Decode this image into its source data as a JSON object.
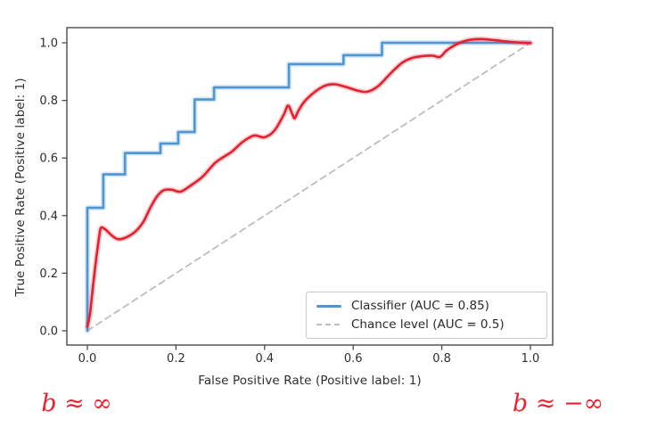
{
  "chart_data": {
    "type": "line",
    "title": "",
    "xlabel": "False Positive Rate (Positive label: 1)",
    "ylabel": "True Positive Rate (Positive label: 1)",
    "xlim": [
      -0.05,
      1.05
    ],
    "ylim": [
      -0.05,
      1.05
    ],
    "grid": false,
    "legend_position": "lower right",
    "x_ticks": [
      0.0,
      0.2,
      0.4,
      0.6,
      0.8,
      1.0
    ],
    "y_ticks": [
      0.0,
      0.2,
      0.4,
      0.6,
      0.8,
      1.0
    ],
    "x_tick_labels": [
      "0.0",
      "0.2",
      "0.4",
      "0.6",
      "0.8",
      "1.0"
    ],
    "y_tick_labels": [
      "0.0",
      "0.2",
      "0.4",
      "0.6",
      "0.8",
      "1.0"
    ],
    "axis_color": "#4a4a4a",
    "tick_label_color": "#2e2e2e",
    "series": [
      {
        "name": "Classifier (AUC = 0.85)",
        "data_name": "classifier-curve",
        "type": "step",
        "style": "solid",
        "color": "#4d96d2",
        "width": 2.6,
        "halo": true,
        "z": 2,
        "points": [
          [
            0,
            0
          ],
          [
            0,
            0.427
          ],
          [
            0.036,
            0.427
          ],
          [
            0.036,
            0.543
          ],
          [
            0.085,
            0.543
          ],
          [
            0.085,
            0.617
          ],
          [
            0.165,
            0.617
          ],
          [
            0.165,
            0.65
          ],
          [
            0.205,
            0.65
          ],
          [
            0.205,
            0.69
          ],
          [
            0.242,
            0.69
          ],
          [
            0.242,
            0.803
          ],
          [
            0.286,
            0.803
          ],
          [
            0.286,
            0.845
          ],
          [
            0.455,
            0.845
          ],
          [
            0.455,
            0.926
          ],
          [
            0.578,
            0.926
          ],
          [
            0.578,
            0.957
          ],
          [
            0.665,
            0.957
          ],
          [
            0.665,
            1.0
          ],
          [
            1.0,
            1.0
          ]
        ]
      },
      {
        "name": "Chance level (AUC = 0.5)",
        "data_name": "chance-line",
        "type": "line",
        "style": "dashed",
        "color": "#bdbdbd",
        "width": 1.8,
        "halo": false,
        "z": 1,
        "points": [
          [
            0,
            0
          ],
          [
            1,
            1
          ]
        ]
      },
      {
        "name": "Smoothed ROC annotation curve",
        "data_name": "smoothed-roc-curve",
        "type": "smooth",
        "style": "solid",
        "color": "#e6202e",
        "width": 2.6,
        "halo": true,
        "z": 3,
        "in_legend": false,
        "points": [
          [
            0,
            0.015
          ],
          [
            0.006,
            0.06
          ],
          [
            0.013,
            0.16
          ],
          [
            0.02,
            0.25
          ],
          [
            0.027,
            0.33
          ],
          [
            0.031,
            0.358
          ],
          [
            0.042,
            0.35
          ],
          [
            0.056,
            0.33
          ],
          [
            0.07,
            0.318
          ],
          [
            0.09,
            0.326
          ],
          [
            0.11,
            0.347
          ],
          [
            0.127,
            0.38
          ],
          [
            0.143,
            0.43
          ],
          [
            0.158,
            0.468
          ],
          [
            0.172,
            0.488
          ],
          [
            0.19,
            0.49
          ],
          [
            0.21,
            0.483
          ],
          [
            0.232,
            0.503
          ],
          [
            0.26,
            0.535
          ],
          [
            0.29,
            0.585
          ],
          [
            0.326,
            0.622
          ],
          [
            0.35,
            0.655
          ],
          [
            0.376,
            0.678
          ],
          [
            0.4,
            0.672
          ],
          [
            0.423,
            0.697
          ],
          [
            0.443,
            0.75
          ],
          [
            0.453,
            0.782
          ],
          [
            0.462,
            0.755
          ],
          [
            0.468,
            0.738
          ],
          [
            0.476,
            0.763
          ],
          [
            0.49,
            0.796
          ],
          [
            0.512,
            0.828
          ],
          [
            0.535,
            0.85
          ],
          [
            0.558,
            0.856
          ],
          [
            0.585,
            0.846
          ],
          [
            0.61,
            0.834
          ],
          [
            0.632,
            0.83
          ],
          [
            0.657,
            0.85
          ],
          [
            0.682,
            0.89
          ],
          [
            0.71,
            0.93
          ],
          [
            0.732,
            0.947
          ],
          [
            0.757,
            0.954
          ],
          [
            0.78,
            0.955
          ],
          [
            0.796,
            0.951
          ],
          [
            0.812,
            0.975
          ],
          [
            0.838,
            0.998
          ],
          [
            0.862,
            1.01
          ],
          [
            0.89,
            1.013
          ],
          [
            0.92,
            1.009
          ],
          [
            0.955,
            1.003
          ],
          [
            1.0,
            0.999
          ]
        ]
      }
    ],
    "annotations": [
      {
        "text": "b ≈ ∞",
        "color": "#ee2130",
        "position": "bottom-left"
      },
      {
        "text": "b ≈ −∞",
        "color": "#ee2130",
        "position": "bottom-right"
      }
    ]
  }
}
